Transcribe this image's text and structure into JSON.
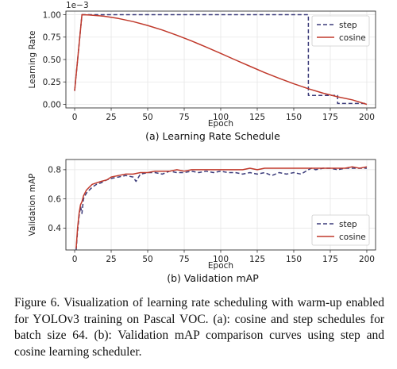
{
  "chart_data": [
    {
      "type": "line",
      "subtitle": "(a) Learning Rate Schedule",
      "xlabel": "Epoch",
      "ylabel": "Learning Rate",
      "offset_label": "1e−3",
      "xlim": [
        -6,
        206
      ],
      "ylim": [
        -0.04,
        1.04
      ],
      "xticks": [
        0,
        25,
        50,
        75,
        100,
        125,
        150,
        175,
        200
      ],
      "yticks": [
        0.0,
        0.25,
        0.5,
        0.75,
        1.0
      ],
      "ytick_labels": [
        "0.00",
        "0.25",
        "0.50",
        "0.75",
        "1.00"
      ],
      "grid": true,
      "legend_position": "top-right",
      "series": [
        {
          "name": "step",
          "style": "dashed",
          "color": "#3b3b7a",
          "x": [
            0,
            5,
            5,
            160,
            160,
            180,
            180,
            200
          ],
          "y": [
            0.15,
            1.0,
            1.0,
            1.0,
            0.1,
            0.1,
            0.01,
            0.01
          ]
        },
        {
          "name": "cosine",
          "style": "solid",
          "color": "#c0392b",
          "x": [
            0,
            5,
            10,
            20,
            30,
            40,
            50,
            60,
            70,
            80,
            90,
            100,
            110,
            120,
            130,
            140,
            150,
            160,
            170,
            180,
            190,
            200
          ],
          "y": [
            0.15,
            1.0,
            0.997,
            0.983,
            0.958,
            0.923,
            0.88,
            0.829,
            0.771,
            0.707,
            0.639,
            0.568,
            0.496,
            0.425,
            0.355,
            0.29,
            0.229,
            0.174,
            0.125,
            0.084,
            0.05,
            0.0
          ]
        }
      ]
    },
    {
      "type": "line",
      "subtitle": "(b) Validation mAP",
      "xlabel": "Epoch",
      "ylabel": "Validation mAP",
      "xlim": [
        -6,
        206
      ],
      "ylim": [
        0.25,
        0.87
      ],
      "xticks": [
        0,
        25,
        50,
        75,
        100,
        125,
        150,
        175,
        200
      ],
      "yticks": [
        0.4,
        0.6,
        0.8
      ],
      "ytick_labels": [
        "0.4",
        "0.6",
        "0.8"
      ],
      "grid": true,
      "legend_position": "bottom-right",
      "series": [
        {
          "name": "step",
          "style": "dashed",
          "color": "#3b3b7a",
          "x": [
            1,
            2,
            3,
            4,
            5,
            6,
            8,
            10,
            12,
            15,
            18,
            22,
            25,
            30,
            35,
            40,
            42,
            45,
            50,
            55,
            60,
            65,
            70,
            75,
            80,
            85,
            90,
            95,
            100,
            105,
            110,
            115,
            120,
            125,
            130,
            135,
            140,
            145,
            150,
            155,
            160,
            162,
            165,
            170,
            175,
            180,
            185,
            190,
            195,
            200
          ],
          "y": [
            0.25,
            0.38,
            0.48,
            0.55,
            0.5,
            0.6,
            0.64,
            0.66,
            0.68,
            0.7,
            0.71,
            0.73,
            0.74,
            0.75,
            0.76,
            0.75,
            0.72,
            0.77,
            0.78,
            0.78,
            0.77,
            0.79,
            0.78,
            0.78,
            0.79,
            0.78,
            0.79,
            0.78,
            0.79,
            0.78,
            0.78,
            0.77,
            0.78,
            0.77,
            0.78,
            0.76,
            0.78,
            0.77,
            0.78,
            0.77,
            0.8,
            0.81,
            0.8,
            0.81,
            0.81,
            0.8,
            0.81,
            0.81,
            0.81,
            0.81
          ]
        },
        {
          "name": "cosine",
          "style": "solid",
          "color": "#c0392b",
          "x": [
            1,
            2,
            3,
            4,
            5,
            6,
            8,
            10,
            12,
            15,
            18,
            22,
            25,
            30,
            35,
            40,
            45,
            50,
            55,
            60,
            65,
            70,
            75,
            80,
            85,
            90,
            95,
            100,
            105,
            110,
            115,
            120,
            125,
            130,
            135,
            140,
            145,
            150,
            155,
            160,
            165,
            170,
            175,
            180,
            185,
            190,
            195,
            200
          ],
          "y": [
            0.26,
            0.4,
            0.5,
            0.56,
            0.58,
            0.62,
            0.66,
            0.68,
            0.7,
            0.71,
            0.72,
            0.73,
            0.75,
            0.76,
            0.77,
            0.77,
            0.78,
            0.78,
            0.79,
            0.79,
            0.79,
            0.8,
            0.79,
            0.8,
            0.8,
            0.8,
            0.8,
            0.8,
            0.8,
            0.8,
            0.8,
            0.81,
            0.8,
            0.81,
            0.81,
            0.81,
            0.81,
            0.81,
            0.81,
            0.81,
            0.81,
            0.81,
            0.81,
            0.81,
            0.81,
            0.82,
            0.81,
            0.82
          ]
        }
      ]
    }
  ],
  "caption": "Figure 6. Visualization of learning rate scheduling with warm-up enabled for YOLOv3 training on Pascal VOC. (a): cosine and step schedules for batch size 64. (b): Validation mAP comparison curves using step and cosine learning scheduler."
}
